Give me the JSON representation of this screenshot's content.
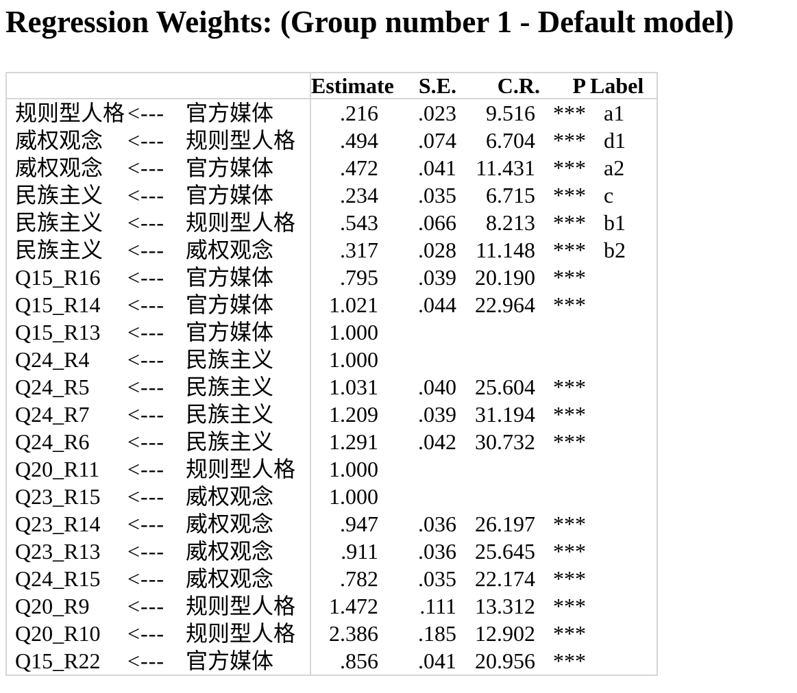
{
  "title": "Regression Weights: (Group number 1 - Default model)",
  "table": {
    "arrow_glyph": "<---",
    "headers": {
      "outcome": "",
      "arrow": "",
      "predictor": "",
      "estimate": "Estimate",
      "se": "S.E.",
      "cr": "C.R.",
      "p": "P",
      "label": "Label"
    },
    "rows": [
      {
        "outcome": "规则型人格",
        "predictor": "官方媒体",
        "estimate": ".216",
        "se": ".023",
        "cr": "9.516",
        "p": "***",
        "label": "a1"
      },
      {
        "outcome": "威权观念",
        "predictor": "规则型人格",
        "estimate": ".494",
        "se": ".074",
        "cr": "6.704",
        "p": "***",
        "label": "d1"
      },
      {
        "outcome": "威权观念",
        "predictor": "官方媒体",
        "estimate": ".472",
        "se": ".041",
        "cr": "11.431",
        "p": "***",
        "label": "a2"
      },
      {
        "outcome": "民族主义",
        "predictor": "官方媒体",
        "estimate": ".234",
        "se": ".035",
        "cr": "6.715",
        "p": "***",
        "label": "c"
      },
      {
        "outcome": "民族主义",
        "predictor": "规则型人格",
        "estimate": ".543",
        "se": ".066",
        "cr": "8.213",
        "p": "***",
        "label": "b1"
      },
      {
        "outcome": "民族主义",
        "predictor": "威权观念",
        "estimate": ".317",
        "se": ".028",
        "cr": "11.148",
        "p": "***",
        "label": "b2"
      },
      {
        "outcome": "Q15_R16",
        "predictor": "官方媒体",
        "estimate": ".795",
        "se": ".039",
        "cr": "20.190",
        "p": "***",
        "label": ""
      },
      {
        "outcome": "Q15_R14",
        "predictor": "官方媒体",
        "estimate": "1.021",
        "se": ".044",
        "cr": "22.964",
        "p": "***",
        "label": ""
      },
      {
        "outcome": "Q15_R13",
        "predictor": "官方媒体",
        "estimate": "1.000",
        "se": "",
        "cr": "",
        "p": "",
        "label": ""
      },
      {
        "outcome": "Q24_R4",
        "predictor": "民族主义",
        "estimate": "1.000",
        "se": "",
        "cr": "",
        "p": "",
        "label": ""
      },
      {
        "outcome": "Q24_R5",
        "predictor": "民族主义",
        "estimate": "1.031",
        "se": ".040",
        "cr": "25.604",
        "p": "***",
        "label": ""
      },
      {
        "outcome": "Q24_R7",
        "predictor": "民族主义",
        "estimate": "1.209",
        "se": ".039",
        "cr": "31.194",
        "p": "***",
        "label": ""
      },
      {
        "outcome": "Q24_R6",
        "predictor": "民族主义",
        "estimate": "1.291",
        "se": ".042",
        "cr": "30.732",
        "p": "***",
        "label": ""
      },
      {
        "outcome": "Q20_R11",
        "predictor": "规则型人格",
        "estimate": "1.000",
        "se": "",
        "cr": "",
        "p": "",
        "label": ""
      },
      {
        "outcome": "Q23_R15",
        "predictor": "威权观念",
        "estimate": "1.000",
        "se": "",
        "cr": "",
        "p": "",
        "label": ""
      },
      {
        "outcome": "Q23_R14",
        "predictor": "威权观念",
        "estimate": ".947",
        "se": ".036",
        "cr": "26.197",
        "p": "***",
        "label": ""
      },
      {
        "outcome": "Q23_R13",
        "predictor": "威权观念",
        "estimate": ".911",
        "se": ".036",
        "cr": "25.645",
        "p": "***",
        "label": ""
      },
      {
        "outcome": "Q24_R15",
        "predictor": "威权观念",
        "estimate": ".782",
        "se": ".035",
        "cr": "22.174",
        "p": "***",
        "label": ""
      },
      {
        "outcome": "Q20_R9",
        "predictor": "规则型人格",
        "estimate": "1.472",
        "se": ".111",
        "cr": "13.312",
        "p": "***",
        "label": ""
      },
      {
        "outcome": "Q20_R10",
        "predictor": "规则型人格",
        "estimate": "2.386",
        "se": ".185",
        "cr": "12.902",
        "p": "***",
        "label": ""
      },
      {
        "outcome": "Q15_R22",
        "predictor": "官方媒体",
        "estimate": ".856",
        "se": ".041",
        "cr": "20.956",
        "p": "***",
        "label": ""
      }
    ]
  },
  "colors": {
    "background": "#ffffff",
    "text": "#000000",
    "table_border": "#d6d6d6"
  }
}
